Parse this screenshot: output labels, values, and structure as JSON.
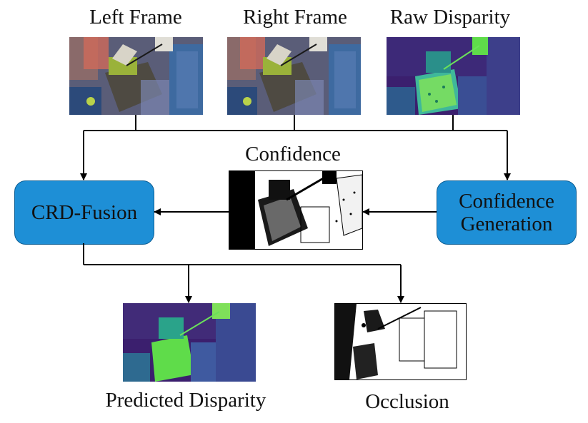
{
  "inputs": {
    "left_frame": "Left Frame",
    "right_frame": "Right Frame",
    "raw_disparity": "Raw Disparity"
  },
  "modules": {
    "fusion": "CRD-Fusion",
    "confidence_generation_line1": "Confidence",
    "confidence_generation_line2": "Generation"
  },
  "intermediate": {
    "confidence": "Confidence"
  },
  "outputs": {
    "predicted_disparity": "Predicted Disparity",
    "occlusion": "Occlusion"
  },
  "colors": {
    "module_fill": "#1e8fd6",
    "module_border": "#0d5f95",
    "arrow": "#000000",
    "disparity_low": "#3b1f6e",
    "disparity_high": "#5fdc4a"
  }
}
